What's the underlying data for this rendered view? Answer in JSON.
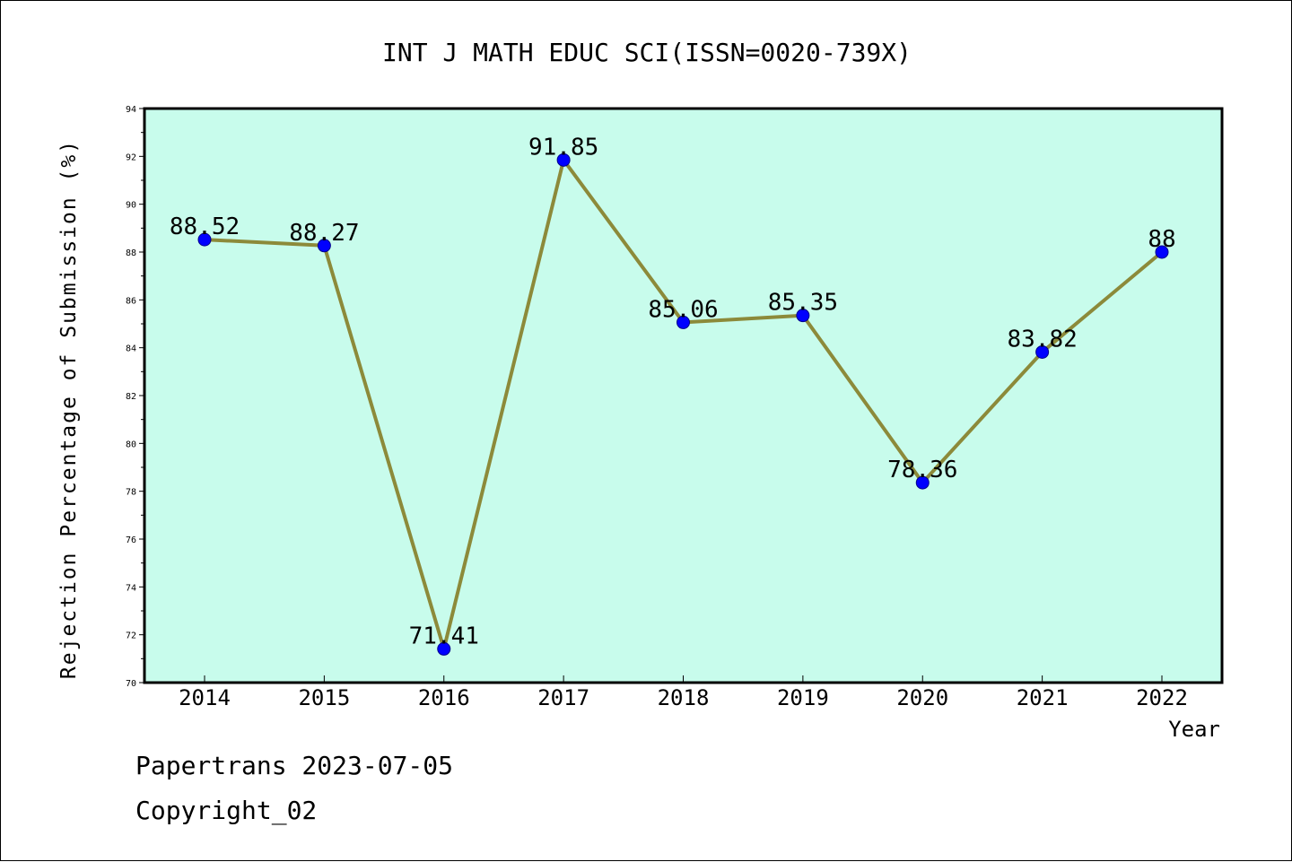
{
  "chart_data": {
    "type": "line",
    "title": "INT J MATH EDUC SCI(ISSN=0020-739X)",
    "xlabel": "Year",
    "ylabel": "Rejection Percentage of Submission (%)",
    "categories": [
      "2014",
      "2015",
      "2016",
      "2017",
      "2018",
      "2019",
      "2020",
      "2021",
      "2022"
    ],
    "series": [
      {
        "values": [
          88.52,
          88.27,
          71.41,
          91.85,
          85.06,
          85.35,
          78.36,
          83.82,
          88
        ],
        "labels": [
          "88.52",
          "88.27",
          "71.41",
          "91.85",
          "85.06",
          "85.35",
          "78.36",
          "83.82",
          "88"
        ]
      }
    ],
    "ylim": [
      70,
      94
    ],
    "yticks": [
      "70",
      "72",
      "74",
      "76",
      "78",
      "80",
      "82",
      "84",
      "86",
      "88",
      "90",
      "92",
      "94"
    ],
    "grid": false,
    "colors": {
      "plot_background": "#c8fcec",
      "line": "#8c8a3a",
      "marker": "#0000ff"
    }
  },
  "footer": {
    "date_line": "Papertrans 2023-07-05",
    "copyright_line": "Copyright_02"
  }
}
